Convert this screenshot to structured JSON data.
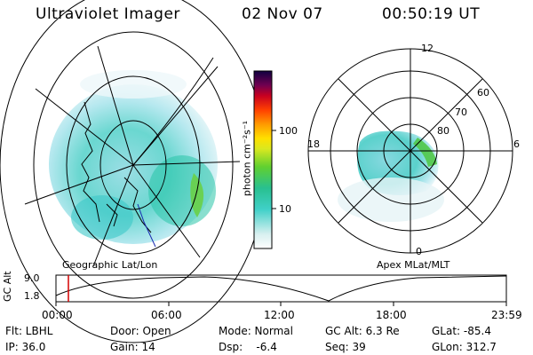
{
  "header": {
    "instrument": "Ultraviolet Imager",
    "date": "02 Nov 07",
    "time": "00:50:19 UT"
  },
  "colorbar": {
    "unit_label": "photon cm⁻²s⁻¹",
    "tick_100": "100",
    "tick_10": "10"
  },
  "geo_map": {
    "caption": "Geographic Lat/Lon"
  },
  "polar_map": {
    "caption": "Apex MLat/MLT",
    "mlt_labels": {
      "top": "12",
      "left": "18",
      "right": "6",
      "bottom": "0"
    },
    "lat_labels": {
      "l60": "60",
      "l70": "70",
      "l80": "80"
    }
  },
  "timeline": {
    "axis_label": "GC Alt",
    "y_max": "9.0",
    "y_min": "1.8",
    "ticks": [
      "00:00",
      "06:00",
      "12:00",
      "18:00",
      "23:59"
    ],
    "marker_color": "#d40000"
  },
  "info": {
    "flt": "Flt: LBHL",
    "ip": "IP: 36.0",
    "door": "Door: Open",
    "gain": "Gain: 14",
    "mode": "Mode: Normal",
    "dsp": "Dsp:    -6.4",
    "gcalt": "GC Alt: 6.3 Re",
    "seq": "Seq: 39",
    "glat": "GLat: -85.4",
    "glon": "GLon: 312.7"
  }
}
